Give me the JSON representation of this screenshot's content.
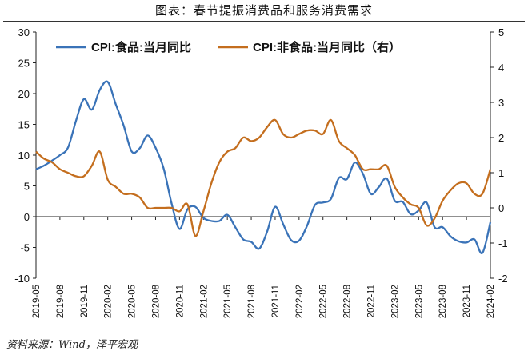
{
  "title": "图表：春节提振消费品和服务消费需求",
  "source": "资料来源：Wind，泽平宏观",
  "colors": {
    "food": "#3a73b8",
    "nonfood": "#c46e1e",
    "axis": "#222222"
  },
  "chart_data": {
    "type": "line",
    "title": "图表：春节提振消费品和服务消费需求",
    "y_left": {
      "min": -10,
      "max": 30,
      "ticks": [
        -10,
        -5,
        0,
        5,
        10,
        15,
        20,
        25,
        30
      ]
    },
    "y_right": {
      "min": -2,
      "max": 5,
      "ticks": [
        -2,
        -1,
        0,
        1,
        2,
        3,
        4,
        5
      ]
    },
    "x_ticks": [
      "2019-05",
      "2019-08",
      "2019-11",
      "2020-02",
      "2020-05",
      "2020-08",
      "2020-11",
      "2021-02",
      "2021-05",
      "2021-08",
      "2021-11",
      "2022-02",
      "2022-05",
      "2022-08",
      "2022-11",
      "2023-02",
      "2023-05",
      "2023-08",
      "2023-11",
      "2024-02"
    ],
    "x": [
      "2019-05",
      "2019-06",
      "2019-07",
      "2019-08",
      "2019-09",
      "2019-10",
      "2019-11",
      "2019-12",
      "2020-01",
      "2020-02",
      "2020-03",
      "2020-04",
      "2020-05",
      "2020-06",
      "2020-07",
      "2020-08",
      "2020-09",
      "2020-10",
      "2020-11",
      "2020-12",
      "2021-01",
      "2021-02",
      "2021-03",
      "2021-04",
      "2021-05",
      "2021-06",
      "2021-07",
      "2021-08",
      "2021-09",
      "2021-10",
      "2021-11",
      "2021-12",
      "2022-01",
      "2022-02",
      "2022-03",
      "2022-04",
      "2022-05",
      "2022-06",
      "2022-07",
      "2022-08",
      "2022-09",
      "2022-10",
      "2022-11",
      "2022-12",
      "2023-01",
      "2023-02",
      "2023-03",
      "2023-04",
      "2023-05",
      "2023-06",
      "2023-07",
      "2023-08",
      "2023-09",
      "2023-10",
      "2023-11",
      "2023-12",
      "2024-01",
      "2024-02"
    ],
    "series": [
      {
        "name": "CPI:食品:当月同比",
        "axis": "left",
        "values": [
          7.7,
          8.3,
          9.1,
          10.0,
          11.2,
          15.5,
          19.1,
          17.4,
          20.6,
          21.9,
          18.3,
          14.8,
          10.6,
          11.1,
          13.2,
          11.2,
          7.9,
          2.2,
          -2.0,
          1.2,
          1.6,
          -0.2,
          -0.7,
          -0.7,
          0.3,
          -1.7,
          -3.7,
          -4.1,
          -5.2,
          -2.4,
          1.6,
          -1.2,
          -3.8,
          -3.9,
          -1.5,
          1.9,
          2.3,
          2.9,
          6.3,
          6.1,
          8.8,
          7.0,
          3.7,
          4.8,
          6.2,
          2.6,
          2.4,
          0.4,
          1.0,
          2.3,
          -1.7,
          -1.7,
          -3.2,
          -4.0,
          -4.2,
          -3.7,
          -5.9,
          -0.9
        ]
      },
      {
        "name": "CPI:非食品:当月同比（右）",
        "axis": "right",
        "values": [
          1.6,
          1.4,
          1.3,
          1.1,
          1.0,
          0.9,
          0.9,
          1.2,
          1.6,
          0.8,
          0.6,
          0.4,
          0.4,
          0.3,
          0.0,
          0.0,
          0.0,
          0.0,
          -0.1,
          0.1,
          -0.8,
          -0.1,
          0.7,
          1.3,
          1.6,
          1.7,
          2.0,
          1.9,
          2.0,
          2.3,
          2.5,
          2.1,
          2.0,
          2.1,
          2.2,
          2.2,
          2.1,
          2.5,
          1.9,
          1.7,
          1.5,
          1.1,
          1.1,
          1.1,
          1.2,
          0.6,
          0.3,
          0.1,
          0.0,
          -0.5,
          -0.3,
          0.2,
          0.5,
          0.7,
          0.7,
          0.4,
          0.4,
          1.1
        ]
      }
    ],
    "legend": "top"
  }
}
